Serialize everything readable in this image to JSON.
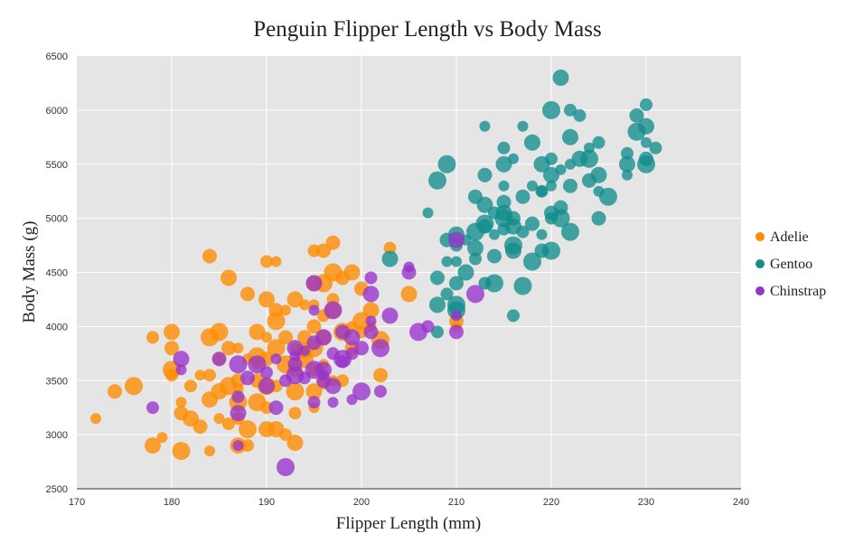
{
  "chart_data": {
    "type": "scatter",
    "title": "Penguin Flipper Length vs Body Mass",
    "xlabel": "Flipper Length (mm)",
    "ylabel": "Body Mass (g)",
    "xlim": [
      170,
      240
    ],
    "ylim": [
      2500,
      6500
    ],
    "x_ticks": [
      170,
      180,
      190,
      200,
      210,
      220,
      230,
      240
    ],
    "y_ticks": [
      2500,
      3000,
      3500,
      4000,
      4500,
      5000,
      5500,
      6000,
      6500
    ],
    "grid": true,
    "legend_position": "right",
    "plot_background": "#e5e5e5",
    "series": [
      {
        "name": "Adelie",
        "color": "#ff8c00",
        "points": [
          [
            172,
            3150
          ],
          [
            174,
            3400
          ],
          [
            176,
            3450
          ],
          [
            178,
            3900
          ],
          [
            178,
            2900
          ],
          [
            179,
            2975
          ],
          [
            180,
            3800
          ],
          [
            180,
            3600
          ],
          [
            180,
            3550
          ],
          [
            180,
            3950
          ],
          [
            181,
            3300
          ],
          [
            181,
            3200
          ],
          [
            181,
            2850
          ],
          [
            182,
            3450
          ],
          [
            182,
            3150
          ],
          [
            183,
            3550
          ],
          [
            183,
            3075
          ],
          [
            184,
            3900
          ],
          [
            184,
            3550
          ],
          [
            184,
            3325
          ],
          [
            184,
            2850
          ],
          [
            184,
            4650
          ],
          [
            185,
            3950
          ],
          [
            185,
            3700
          ],
          [
            185,
            3400
          ],
          [
            185,
            3150
          ],
          [
            186,
            3800
          ],
          [
            186,
            3450
          ],
          [
            186,
            3100
          ],
          [
            186,
            4450
          ],
          [
            187,
            3800
          ],
          [
            187,
            3500
          ],
          [
            187,
            3300
          ],
          [
            187,
            3150
          ],
          [
            187,
            2900
          ],
          [
            188,
            3700
          ],
          [
            188,
            4300
          ],
          [
            188,
            3050
          ],
          [
            188,
            2900
          ],
          [
            189,
            3950
          ],
          [
            189,
            3650
          ],
          [
            189,
            3500
          ],
          [
            189,
            3300
          ],
          [
            190,
            4600
          ],
          [
            190,
            4250
          ],
          [
            190,
            3900
          ],
          [
            190,
            3700
          ],
          [
            190,
            3450
          ],
          [
            190,
            3250
          ],
          [
            190,
            3050
          ],
          [
            191,
            4600
          ],
          [
            191,
            4150
          ],
          [
            191,
            3800
          ],
          [
            191,
            3450
          ],
          [
            191,
            3050
          ],
          [
            192,
            4150
          ],
          [
            192,
            3900
          ],
          [
            192,
            3650
          ],
          [
            192,
            3000
          ],
          [
            193,
            4250
          ],
          [
            193,
            3800
          ],
          [
            193,
            3600
          ],
          [
            193,
            3400
          ],
          [
            193,
            3200
          ],
          [
            193,
            2925
          ],
          [
            194,
            4200
          ],
          [
            194,
            3900
          ],
          [
            194,
            3700
          ],
          [
            195,
            4700
          ],
          [
            195,
            4400
          ],
          [
            195,
            4200
          ],
          [
            195,
            4000
          ],
          [
            195,
            3800
          ],
          [
            195,
            3600
          ],
          [
            195,
            3400
          ],
          [
            195,
            3250
          ],
          [
            196,
            4700
          ],
          [
            196,
            4400
          ],
          [
            196,
            4100
          ],
          [
            196,
            3900
          ],
          [
            196,
            3650
          ],
          [
            197,
            4775
          ],
          [
            197,
            4500
          ],
          [
            197,
            4250
          ],
          [
            197,
            4150
          ],
          [
            197,
            3500
          ],
          [
            198,
            4450
          ],
          [
            198,
            3950
          ],
          [
            198,
            3500
          ],
          [
            199,
            4500
          ],
          [
            199,
            4000
          ],
          [
            199,
            3800
          ],
          [
            200,
            4050
          ],
          [
            200,
            3950
          ],
          [
            201,
            4150
          ],
          [
            201,
            4000
          ],
          [
            202,
            3550
          ],
          [
            202,
            3875
          ],
          [
            203,
            4725
          ],
          [
            205,
            4300
          ],
          [
            210,
            4000
          ],
          [
            210,
            4050
          ],
          [
            191,
            4050
          ],
          [
            196,
            3475
          ],
          [
            194,
            3775
          ],
          [
            187,
            3425
          ],
          [
            200,
            4350
          ],
          [
            189,
            3725
          ]
        ]
      },
      {
        "name": "Gentoo",
        "color": "#138d8d",
        "points": [
          [
            203,
            4625
          ],
          [
            207,
            5050
          ],
          [
            208,
            4450
          ],
          [
            208,
            5350
          ],
          [
            208,
            3950
          ],
          [
            208,
            4200
          ],
          [
            209,
            4600
          ],
          [
            209,
            4800
          ],
          [
            209,
            5500
          ],
          [
            209,
            4300
          ],
          [
            210,
            4850
          ],
          [
            210,
            4600
          ],
          [
            210,
            4400
          ],
          [
            210,
            4150
          ],
          [
            210,
            4750
          ],
          [
            211,
            4500
          ],
          [
            211,
            4800
          ],
          [
            212,
            5200
          ],
          [
            212,
            4875
          ],
          [
            212,
            4625
          ],
          [
            212,
            4725
          ],
          [
            213,
            5850
          ],
          [
            213,
            5400
          ],
          [
            213,
            4950
          ],
          [
            213,
            4400
          ],
          [
            213,
            5125
          ],
          [
            214,
            4850
          ],
          [
            214,
            4650
          ],
          [
            214,
            4400
          ],
          [
            215,
            5650
          ],
          [
            215,
            5500
          ],
          [
            215,
            5300
          ],
          [
            215,
            5150
          ],
          [
            215,
            5000
          ],
          [
            215,
            4900
          ],
          [
            215,
            5050
          ],
          [
            216,
            5550
          ],
          [
            216,
            5000
          ],
          [
            216,
            4750
          ],
          [
            216,
            4100
          ],
          [
            216,
            4700
          ],
          [
            217,
            5850
          ],
          [
            217,
            5200
          ],
          [
            217,
            4375
          ],
          [
            217,
            4875
          ],
          [
            218,
            5700
          ],
          [
            218,
            5300
          ],
          [
            218,
            4950
          ],
          [
            218,
            4600
          ],
          [
            219,
            5250
          ],
          [
            219,
            5500
          ],
          [
            219,
            4850
          ],
          [
            219,
            4700
          ],
          [
            220,
            6000
          ],
          [
            220,
            5550
          ],
          [
            220,
            5400
          ],
          [
            220,
            5300
          ],
          [
            220,
            5050
          ],
          [
            220,
            4700
          ],
          [
            220,
            5000
          ],
          [
            221,
            6300
          ],
          [
            221,
            5450
          ],
          [
            221,
            5100
          ],
          [
            221,
            5000
          ],
          [
            222,
            6000
          ],
          [
            222,
            5750
          ],
          [
            222,
            5500
          ],
          [
            222,
            5300
          ],
          [
            222,
            4875
          ],
          [
            223,
            5950
          ],
          [
            223,
            5550
          ],
          [
            224,
            5650
          ],
          [
            224,
            5350
          ],
          [
            224,
            5550
          ],
          [
            225,
            5700
          ],
          [
            225,
            5400
          ],
          [
            225,
            5250
          ],
          [
            225,
            5000
          ],
          [
            226,
            5200
          ],
          [
            228,
            5600
          ],
          [
            228,
            5500
          ],
          [
            228,
            5400
          ],
          [
            229,
            5950
          ],
          [
            229,
            5800
          ],
          [
            230,
            6050
          ],
          [
            230,
            5850
          ],
          [
            230,
            5700
          ],
          [
            230,
            5550
          ],
          [
            230,
            5500
          ],
          [
            231,
            5650
          ],
          [
            216,
            4925
          ],
          [
            219,
            5250
          ],
          [
            213,
            4925
          ],
          [
            210,
            4200
          ],
          [
            214,
            5050
          ]
        ]
      },
      {
        "name": "Chinstrap",
        "color": "#9932cc",
        "points": [
          [
            178,
            3250
          ],
          [
            181,
            3700
          ],
          [
            181,
            3600
          ],
          [
            185,
            3700
          ],
          [
            187,
            3650
          ],
          [
            187,
            3350
          ],
          [
            187,
            3200
          ],
          [
            187,
            2900
          ],
          [
            188,
            3525
          ],
          [
            189,
            3650
          ],
          [
            190,
            3575
          ],
          [
            190,
            3450
          ],
          [
            191,
            3700
          ],
          [
            191,
            3250
          ],
          [
            192,
            2700
          ],
          [
            192,
            3500
          ],
          [
            193,
            3800
          ],
          [
            193,
            3725
          ],
          [
            193,
            3650
          ],
          [
            193,
            3550
          ],
          [
            194,
            3525
          ],
          [
            195,
            4400
          ],
          [
            195,
            4150
          ],
          [
            195,
            3850
          ],
          [
            195,
            3600
          ],
          [
            195,
            3300
          ],
          [
            196,
            3900
          ],
          [
            196,
            3550
          ],
          [
            196,
            3500
          ],
          [
            197,
            4150
          ],
          [
            197,
            3750
          ],
          [
            197,
            3450
          ],
          [
            197,
            3300
          ],
          [
            198,
            3950
          ],
          [
            198,
            3700
          ],
          [
            198,
            3675
          ],
          [
            199,
            3900
          ],
          [
            199,
            3325
          ],
          [
            200,
            3800
          ],
          [
            200,
            3400
          ],
          [
            201,
            4450
          ],
          [
            201,
            4300
          ],
          [
            201,
            4050
          ],
          [
            201,
            3950
          ],
          [
            202,
            3800
          ],
          [
            202,
            3400
          ],
          [
            203,
            4100
          ],
          [
            205,
            4550
          ],
          [
            205,
            4500
          ],
          [
            206,
            3950
          ],
          [
            207,
            4000
          ],
          [
            210,
            4800
          ],
          [
            210,
            4100
          ],
          [
            210,
            3950
          ],
          [
            212,
            4300
          ],
          [
            199,
            3750
          ],
          [
            196,
            3600
          ],
          [
            194,
            3775
          ]
        ]
      }
    ]
  }
}
